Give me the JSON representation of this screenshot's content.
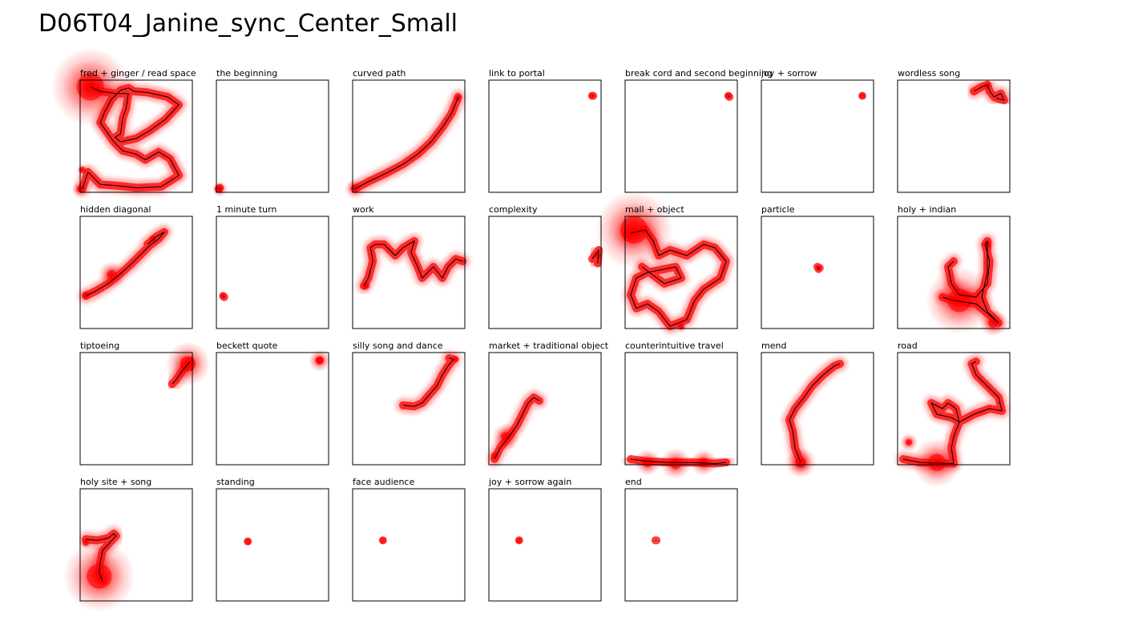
{
  "page": {
    "title": "D06T04_Janine_sync_Center_Small"
  },
  "chart_data": [
    {
      "type": "scatter",
      "title": "fred + ginger / read space",
      "xlim": [
        0,
        1
      ],
      "ylim": [
        0,
        1
      ],
      "path": [
        [
          0.09,
          0.06
        ],
        [
          0.18,
          0.1
        ],
        [
          0.32,
          0.12
        ],
        [
          0.43,
          0.12
        ],
        [
          0.41,
          0.25
        ],
        [
          0.38,
          0.34
        ],
        [
          0.36,
          0.48
        ],
        [
          0.31,
          0.51
        ],
        [
          0.36,
          0.55
        ],
        [
          0.5,
          0.52
        ],
        [
          0.62,
          0.45
        ],
        [
          0.76,
          0.35
        ],
        [
          0.88,
          0.22
        ],
        [
          0.78,
          0.15
        ],
        [
          0.6,
          0.11
        ],
        [
          0.48,
          0.1
        ],
        [
          0.43,
          0.07
        ],
        [
          0.36,
          0.09
        ],
        [
          0.28,
          0.17
        ],
        [
          0.22,
          0.28
        ],
        [
          0.18,
          0.38
        ],
        [
          0.3,
          0.55
        ],
        [
          0.38,
          0.63
        ],
        [
          0.5,
          0.66
        ],
        [
          0.58,
          0.71
        ],
        [
          0.7,
          0.64
        ],
        [
          0.8,
          0.7
        ],
        [
          0.88,
          0.85
        ],
        [
          0.72,
          0.95
        ],
        [
          0.5,
          0.96
        ],
        [
          0.32,
          0.94
        ],
        [
          0.18,
          0.93
        ],
        [
          0.07,
          0.82
        ],
        [
          0.02,
          0.97
        ]
      ],
      "blobs": [
        [
          0.09,
          0.06,
          0.35
        ],
        [
          0.09,
          0.06,
          0.1
        ],
        [
          0.0,
          0.97,
          0.07
        ],
        [
          0.02,
          0.8,
          0.05
        ]
      ]
    },
    {
      "type": "scatter",
      "title": "the beginning",
      "xlim": [
        0,
        1
      ],
      "ylim": [
        0,
        1
      ],
      "path": [
        [
          0.02,
          0.97
        ],
        [
          0.03,
          0.96
        ]
      ],
      "blobs": [
        [
          0.03,
          0.97,
          0.07
        ]
      ]
    },
    {
      "type": "scatter",
      "title": "curved path",
      "xlim": [
        0,
        1
      ],
      "ylim": [
        0,
        1
      ],
      "path": [
        [
          0.02,
          0.97
        ],
        [
          0.15,
          0.9
        ],
        [
          0.3,
          0.83
        ],
        [
          0.45,
          0.75
        ],
        [
          0.58,
          0.66
        ],
        [
          0.7,
          0.55
        ],
        [
          0.8,
          0.42
        ],
        [
          0.88,
          0.3
        ],
        [
          0.93,
          0.18
        ],
        [
          0.94,
          0.15
        ]
      ],
      "blobs": [
        [
          0.02,
          0.96,
          0.07
        ],
        [
          0.94,
          0.16,
          0.03
        ]
      ]
    },
    {
      "type": "scatter",
      "title": "link to portal",
      "xlim": [
        0,
        1
      ],
      "ylim": [
        0,
        1
      ],
      "path": [
        [
          0.92,
          0.14
        ],
        [
          0.93,
          0.14
        ]
      ],
      "blobs": [
        [
          0.92,
          0.14,
          0.02
        ]
      ]
    },
    {
      "type": "scatter",
      "title": "break cord and second beginning",
      "xlim": [
        0,
        1
      ],
      "ylim": [
        0,
        1
      ],
      "path": [
        [
          0.92,
          0.14
        ],
        [
          0.93,
          0.15
        ]
      ],
      "blobs": [
        [
          0.92,
          0.14,
          0.03
        ]
      ]
    },
    {
      "type": "scatter",
      "title": "joy + sorrow",
      "xlim": [
        0,
        1
      ],
      "ylim": [
        0,
        1
      ],
      "path": [
        [
          0.9,
          0.14
        ],
        [
          0.9,
          0.14
        ]
      ],
      "blobs": [
        [
          0.9,
          0.14,
          0.015
        ]
      ]
    },
    {
      "type": "scatter",
      "title": "wordless song",
      "xlim": [
        0,
        1
      ],
      "ylim": [
        0,
        1
      ],
      "path": [
        [
          0.68,
          0.1
        ],
        [
          0.75,
          0.06
        ],
        [
          0.8,
          0.04
        ],
        [
          0.82,
          0.1
        ],
        [
          0.86,
          0.15
        ],
        [
          0.92,
          0.12
        ],
        [
          0.95,
          0.18
        ],
        [
          0.88,
          0.16
        ]
      ],
      "blobs": [
        [
          0.8,
          0.05,
          0.04
        ]
      ]
    },
    {
      "type": "scatter",
      "title": "hidden diagonal",
      "xlim": [
        0,
        1
      ],
      "ylim": [
        0,
        1
      ],
      "path": [
        [
          0.05,
          0.71
        ],
        [
          0.15,
          0.66
        ],
        [
          0.25,
          0.6
        ],
        [
          0.35,
          0.52
        ],
        [
          0.45,
          0.43
        ],
        [
          0.55,
          0.33
        ],
        [
          0.62,
          0.26
        ],
        [
          0.7,
          0.2
        ],
        [
          0.75,
          0.14
        ],
        [
          0.68,
          0.18
        ],
        [
          0.6,
          0.25
        ]
      ],
      "blobs": [
        [
          0.28,
          0.52,
          0.12
        ],
        [
          0.05,
          0.7,
          0.05
        ],
        [
          0.65,
          0.2,
          0.04
        ]
      ]
    },
    {
      "type": "scatter",
      "title": "1 minute turn",
      "xlim": [
        0,
        1
      ],
      "ylim": [
        0,
        1
      ],
      "path": [
        [
          0.06,
          0.71
        ],
        [
          0.07,
          0.72
        ]
      ],
      "blobs": [
        [
          0.06,
          0.71,
          0.03
        ]
      ]
    },
    {
      "type": "scatter",
      "title": "work",
      "xlim": [
        0,
        1
      ],
      "ylim": [
        0,
        1
      ],
      "path": [
        [
          0.1,
          0.62
        ],
        [
          0.14,
          0.55
        ],
        [
          0.18,
          0.4
        ],
        [
          0.16,
          0.28
        ],
        [
          0.2,
          0.25
        ],
        [
          0.28,
          0.25
        ],
        [
          0.38,
          0.35
        ],
        [
          0.45,
          0.28
        ],
        [
          0.55,
          0.22
        ],
        [
          0.52,
          0.32
        ],
        [
          0.58,
          0.45
        ],
        [
          0.62,
          0.55
        ],
        [
          0.72,
          0.45
        ],
        [
          0.8,
          0.55
        ],
        [
          0.85,
          0.45
        ],
        [
          0.92,
          0.38
        ],
        [
          0.98,
          0.4
        ]
      ],
      "blobs": [
        [
          0.12,
          0.62,
          0.05
        ]
      ]
    },
    {
      "type": "scatter",
      "title": "complexity",
      "xlim": [
        0,
        1
      ],
      "ylim": [
        0,
        1
      ],
      "path": [
        [
          0.92,
          0.38
        ],
        [
          0.98,
          0.3
        ],
        [
          0.97,
          0.42
        ]
      ],
      "blobs": [
        [
          0.97,
          0.35,
          0.02
        ]
      ]
    },
    {
      "type": "scatter",
      "title": "mall + object",
      "xlim": [
        0,
        1
      ],
      "ylim": [
        0,
        1
      ],
      "path": [
        [
          0.05,
          0.15
        ],
        [
          0.18,
          0.12
        ],
        [
          0.25,
          0.22
        ],
        [
          0.3,
          0.35
        ],
        [
          0.4,
          0.3
        ],
        [
          0.55,
          0.35
        ],
        [
          0.7,
          0.25
        ],
        [
          0.8,
          0.28
        ],
        [
          0.9,
          0.4
        ],
        [
          0.85,
          0.55
        ],
        [
          0.7,
          0.65
        ],
        [
          0.62,
          0.75
        ],
        [
          0.55,
          0.92
        ],
        [
          0.4,
          0.98
        ],
        [
          0.3,
          0.85
        ],
        [
          0.2,
          0.78
        ],
        [
          0.1,
          0.82
        ],
        [
          0.05,
          0.7
        ],
        [
          0.1,
          0.55
        ],
        [
          0.2,
          0.5
        ],
        [
          0.3,
          0.48
        ],
        [
          0.45,
          0.45
        ],
        [
          0.5,
          0.55
        ],
        [
          0.35,
          0.6
        ],
        [
          0.15,
          0.45
        ]
      ],
      "blobs": [
        [
          0.08,
          0.12,
          0.35
        ],
        [
          0.05,
          0.15,
          0.15
        ],
        [
          0.5,
          0.98,
          0.05
        ]
      ]
    },
    {
      "type": "scatter",
      "title": "particle",
      "xlim": [
        0,
        1
      ],
      "ylim": [
        0,
        1
      ],
      "path": [
        [
          0.5,
          0.45
        ],
        [
          0.51,
          0.47
        ],
        [
          0.52,
          0.46
        ]
      ],
      "blobs": [
        [
          0.51,
          0.46,
          0.03
        ]
      ]
    },
    {
      "type": "scatter",
      "title": "holy + indian",
      "xlim": [
        0,
        1
      ],
      "ylim": [
        0,
        1
      ],
      "path": [
        [
          0.5,
          0.4
        ],
        [
          0.45,
          0.45
        ],
        [
          0.48,
          0.6
        ],
        [
          0.55,
          0.7
        ],
        [
          0.7,
          0.72
        ],
        [
          0.8,
          0.6
        ],
        [
          0.82,
          0.4
        ],
        [
          0.78,
          0.25
        ],
        [
          0.8,
          0.22
        ],
        [
          0.8,
          0.5
        ],
        [
          0.75,
          0.72
        ],
        [
          0.8,
          0.85
        ],
        [
          0.9,
          0.95
        ],
        [
          0.7,
          0.78
        ],
        [
          0.5,
          0.75
        ],
        [
          0.4,
          0.72
        ]
      ],
      "blobs": [
        [
          0.55,
          0.75,
          0.3
        ],
        [
          0.85,
          0.95,
          0.12
        ],
        [
          0.8,
          0.25,
          0.06
        ]
      ]
    },
    {
      "type": "scatter",
      "title": "tiptoeing",
      "xlim": [
        0,
        1
      ],
      "ylim": [
        0,
        1
      ],
      "path": [
        [
          0.98,
          0.08
        ],
        [
          0.92,
          0.15
        ],
        [
          0.85,
          0.25
        ],
        [
          0.82,
          0.28
        ]
      ],
      "blobs": [
        [
          0.96,
          0.1,
          0.2
        ]
      ]
    },
    {
      "type": "scatter",
      "title": "beckett quote",
      "xlim": [
        0,
        1
      ],
      "ylim": [
        0,
        1
      ],
      "path": [
        [
          0.92,
          0.07
        ],
        [
          0.92,
          0.07
        ]
      ],
      "blobs": [
        [
          0.92,
          0.07,
          0.1
        ]
      ]
    },
    {
      "type": "scatter",
      "title": "silly song and dance",
      "xlim": [
        0,
        1
      ],
      "ylim": [
        0,
        1
      ],
      "path": [
        [
          0.45,
          0.47
        ],
        [
          0.55,
          0.48
        ],
        [
          0.62,
          0.45
        ],
        [
          0.68,
          0.38
        ],
        [
          0.75,
          0.3
        ],
        [
          0.8,
          0.2
        ],
        [
          0.85,
          0.12
        ],
        [
          0.9,
          0.06
        ],
        [
          0.86,
          0.05
        ]
      ],
      "blobs": [
        [
          0.92,
          0.06,
          0.03
        ]
      ]
    },
    {
      "type": "scatter",
      "title": "market + traditional object",
      "xlim": [
        0,
        1
      ],
      "ylim": [
        0,
        1
      ],
      "path": [
        [
          0.05,
          0.95
        ],
        [
          0.1,
          0.85
        ],
        [
          0.18,
          0.75
        ],
        [
          0.25,
          0.65
        ],
        [
          0.3,
          0.55
        ],
        [
          0.35,
          0.45
        ],
        [
          0.4,
          0.4
        ],
        [
          0.45,
          0.43
        ]
      ],
      "blobs": [
        [
          0.15,
          0.75,
          0.12
        ],
        [
          0.05,
          0.92,
          0.05
        ]
      ]
    },
    {
      "type": "scatter",
      "title": "counterintuitive travel",
      "xlim": [
        0,
        1
      ],
      "ylim": [
        0,
        1
      ],
      "path": [
        [
          0.05,
          0.95
        ],
        [
          0.2,
          0.97
        ],
        [
          0.4,
          0.98
        ],
        [
          0.6,
          0.98
        ],
        [
          0.8,
          0.99
        ],
        [
          0.9,
          0.98
        ]
      ],
      "blobs": [
        [
          0.2,
          0.98,
          0.12
        ],
        [
          0.45,
          0.99,
          0.14
        ],
        [
          0.7,
          0.98,
          0.12
        ]
      ]
    },
    {
      "type": "scatter",
      "title": "mend",
      "xlim": [
        0,
        1
      ],
      "ylim": [
        0,
        1
      ],
      "path": [
        [
          0.35,
          0.98
        ],
        [
          0.3,
          0.85
        ],
        [
          0.28,
          0.7
        ],
        [
          0.25,
          0.6
        ],
        [
          0.3,
          0.5
        ],
        [
          0.38,
          0.4
        ],
        [
          0.45,
          0.3
        ],
        [
          0.55,
          0.2
        ],
        [
          0.65,
          0.12
        ],
        [
          0.7,
          0.1
        ]
      ],
      "blobs": [
        [
          0.35,
          0.98,
          0.14
        ]
      ]
    },
    {
      "type": "scatter",
      "title": "road",
      "xlim": [
        0,
        1
      ],
      "ylim": [
        0,
        1
      ],
      "path": [
        [
          0.05,
          0.95
        ],
        [
          0.2,
          0.98
        ],
        [
          0.5,
          0.99
        ],
        [
          0.48,
          0.85
        ],
        [
          0.5,
          0.75
        ],
        [
          0.55,
          0.62
        ],
        [
          0.52,
          0.5
        ],
        [
          0.45,
          0.45
        ],
        [
          0.4,
          0.5
        ],
        [
          0.3,
          0.45
        ],
        [
          0.35,
          0.55
        ],
        [
          0.48,
          0.58
        ],
        [
          0.55,
          0.62
        ],
        [
          0.68,
          0.55
        ],
        [
          0.82,
          0.5
        ],
        [
          0.93,
          0.52
        ],
        [
          0.9,
          0.4
        ],
        [
          0.8,
          0.3
        ],
        [
          0.7,
          0.2
        ],
        [
          0.66,
          0.1
        ],
        [
          0.7,
          0.08
        ]
      ],
      "blobs": [
        [
          0.35,
          0.98,
          0.22
        ],
        [
          0.1,
          0.8,
          0.08
        ]
      ]
    },
    {
      "type": "scatter",
      "title": "holy site + song",
      "xlim": [
        0,
        1
      ],
      "ylim": [
        0,
        1
      ],
      "path": [
        [
          0.05,
          0.45
        ],
        [
          0.15,
          0.46
        ],
        [
          0.25,
          0.44
        ],
        [
          0.3,
          0.4
        ],
        [
          0.32,
          0.42
        ],
        [
          0.2,
          0.55
        ],
        [
          0.18,
          0.65
        ],
        [
          0.17,
          0.75
        ],
        [
          0.2,
          0.82
        ],
        [
          0.18,
          0.78
        ]
      ],
      "blobs": [
        [
          0.17,
          0.78,
          0.32
        ],
        [
          0.05,
          0.48,
          0.05
        ]
      ]
    },
    {
      "type": "scatter",
      "title": "standing",
      "xlim": [
        0,
        1
      ],
      "ylim": [
        0,
        1
      ],
      "path": [
        [
          0.28,
          0.47
        ],
        [
          0.28,
          0.47
        ]
      ],
      "blobs": [
        [
          0.28,
          0.47,
          0.02
        ]
      ]
    },
    {
      "type": "scatter",
      "title": "face audience",
      "xlim": [
        0,
        1
      ],
      "ylim": [
        0,
        1
      ],
      "path": [
        [
          0.27,
          0.46
        ],
        [
          0.27,
          0.46
        ]
      ],
      "blobs": [
        [
          0.27,
          0.46,
          0.01
        ]
      ]
    },
    {
      "type": "scatter",
      "title": "joy + sorrow again",
      "xlim": [
        0,
        1
      ],
      "ylim": [
        0,
        1
      ],
      "path": [
        [
          0.27,
          0.46
        ],
        [
          0.27,
          0.46
        ]
      ],
      "blobs": [
        [
          0.27,
          0.46,
          0.02
        ]
      ]
    },
    {
      "type": "scatter",
      "title": "end",
      "xlim": [
        0,
        1
      ],
      "ylim": [
        0,
        1
      ],
      "path": [
        [
          0.27,
          0.46
        ],
        [
          0.28,
          0.46
        ]
      ],
      "blobs": []
    }
  ],
  "colors": {
    "trace": "#000000",
    "heat": "#ff0000",
    "frame": "#000000"
  }
}
